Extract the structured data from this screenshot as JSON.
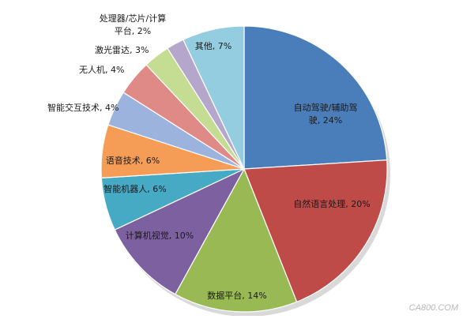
{
  "chart_data": {
    "type": "pie",
    "slices": [
      {
        "label": "自动驾驶/辅助驾驶, 24%",
        "value": 24,
        "color": "#4a7ebb"
      },
      {
        "label": "自然语言处理, 20%",
        "value": 20,
        "color": "#be4b48"
      },
      {
        "label": "数据平台, 14%",
        "value": 14,
        "color": "#98b954"
      },
      {
        "label": "计算机视觉, 10%",
        "value": 10,
        "color": "#7d60a0"
      },
      {
        "label": "智能机器人, 6%",
        "value": 6,
        "color": "#46aac5"
      },
      {
        "label": "语音技术, 6%",
        "value": 6,
        "color": "#f59d56"
      },
      {
        "label": "智能交互技术, 4%",
        "value": 4,
        "color": "#9cb3dd"
      },
      {
        "label": "无人机, 4%",
        "value": 4,
        "color": "#e08a88"
      },
      {
        "label": "激光雷达, 3%",
        "value": 3,
        "color": "#c5dc93"
      },
      {
        "label": "处理器/芯片/计算平台, 2%",
        "value": 2,
        "color": "#b5a6cc"
      },
      {
        "label": "其他, 7%",
        "value": 7,
        "color": "#94cde0"
      }
    ]
  },
  "watermark": "CA800.COM"
}
